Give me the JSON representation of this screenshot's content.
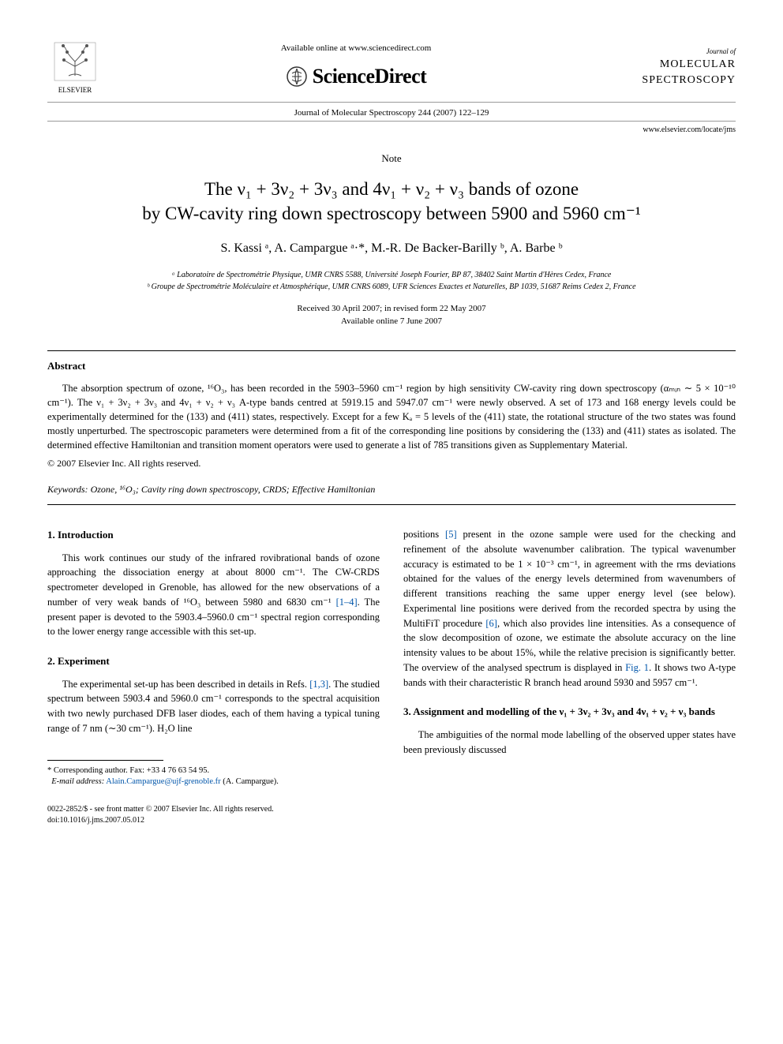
{
  "header": {
    "available_online": "Available online at www.sciencedirect.com",
    "sciencedirect": "ScienceDirect",
    "elsevier_label": "ELSEVIER",
    "journal_small": "Journal of",
    "journal_name_1": "MOLECULAR",
    "journal_name_2": "SPECTROSCOPY",
    "citation": "Journal of Molecular Spectroscopy 244 (2007) 122–129",
    "locate_url": "www.elsevier.com/locate/jms"
  },
  "note_label": "Note",
  "title_line1": "The ν₁ + 3ν₂ + 3ν₃ and 4ν₁ + ν₂ + ν₃ bands of ozone",
  "title_line2": "by CW-cavity ring down spectroscopy between 5900 and 5960 cm⁻¹",
  "authors_html": "S. Kassi ᵃ, A. Campargue ᵃ·*, M.-R. De Backer-Barilly ᵇ, A. Barbe ᵇ",
  "affiliations": {
    "a": "ᵃ Laboratoire de Spectrométrie Physique, UMR CNRS 5588, Université Joseph Fourier, BP 87, 38402 Saint Martin d'Hères Cedex, France",
    "b": "ᵇ Groupe de Spectrométrie Moléculaire et Atmosphérique, UMR CNRS 6089, UFR Sciences Exactes et Naturelles, BP 1039, 51687 Reims Cedex 2, France"
  },
  "dates": {
    "received": "Received 30 April 2007; in revised form 22 May 2007",
    "online": "Available online 7 June 2007"
  },
  "abstract": {
    "heading": "Abstract",
    "text": "The absorption spectrum of ozone, ¹⁶O₃, has been recorded in the 5903–5960 cm⁻¹ region by high sensitivity CW-cavity ring down spectroscopy (αₘᵢₙ ∼ 5 × 10⁻¹⁰ cm⁻¹). The ν₁ + 3ν₂ + 3ν₃ and 4ν₁ + ν₂ + ν₃ A-type bands centred at 5919.15 and 5947.07 cm⁻¹ were newly observed. A set of 173 and 168 energy levels could be experimentally determined for the (133) and (411) states, respectively. Except for a few Kₐ = 5 levels of the (411) state, the rotational structure of the two states was found mostly unperturbed. The spectroscopic parameters were determined from a fit of the corresponding line positions by considering the (133) and (411) states as isolated. The determined effective Hamiltonian and transition moment operators were used to generate a list of 785 transitions given as Supplementary Material.",
    "copyright": "© 2007 Elsevier Inc. All rights reserved."
  },
  "keywords": {
    "label": "Keywords:",
    "text": " Ozone, ¹⁶O₃; Cavity ring down spectroscopy, CRDS; Effective Hamiltonian"
  },
  "sections": {
    "intro_heading": "1. Introduction",
    "intro_text": "This work continues our study of the infrared rovibrational bands of ozone approaching the dissociation energy at about 8000 cm⁻¹. The CW-CRDS spectrometer developed in Grenoble, has allowed for the new observations of a number of very weak bands of ¹⁶O₃ between 5980 and 6830 cm⁻¹ [1–4]. The present paper is devoted to the 5903.4–5960.0 cm⁻¹ spectral region corresponding to the lower energy range accessible with this set-up.",
    "exp_heading": "2. Experiment",
    "exp_text": "The experimental set-up has been described in details in Refs. [1,3]. The studied spectrum between 5903.4 and 5960.0 cm⁻¹ corresponds to the spectral acquisition with two newly purchased DFB laser diodes, each of them having a typical tuning range of 7 nm (∼30 cm⁻¹). H₂O line",
    "col2_text1": "positions [5] present in the ozone sample were used for the checking and refinement of the absolute wavenumber calibration. The typical wavenumber accuracy is estimated to be 1 × 10⁻³ cm⁻¹, in agreement with the rms deviations obtained for the values of the energy levels determined from wavenumbers of different transitions reaching the same upper energy level (see below). Experimental line positions were derived from the recorded spectra by using the MultiFiT procedure [6], which also provides line intensities. As a consequence of the slow decomposition of ozone, we estimate the absolute accuracy on the line intensity values to be about 15%, while the relative precision is significantly better. The overview of the analysed spectrum is displayed in Fig. 1. It shows two A-type bands with their characteristic R branch head around 5930 and 5957 cm⁻¹.",
    "assign_heading": "3. Assignment and modelling of the ν₁ + 3ν₂ + 3ν₃ and 4ν₁ + ν₂ + ν₃ bands",
    "assign_text": "The ambiguities of the normal mode labelling of the observed upper states have been previously discussed"
  },
  "footnote": {
    "corresp": "* Corresponding author. Fax: +33 4 76 63 54 95.",
    "email_label": "E-mail address:",
    "email": "Alain.Campargue@ujf-grenoble.fr",
    "email_name": " (A. Campargue)."
  },
  "footer": {
    "line1": "0022-2852/$ - see front matter © 2007 Elsevier Inc. All rights reserved.",
    "line2": "doi:10.1016/j.jms.2007.05.012"
  },
  "colors": {
    "link": "#0055aa",
    "text": "#000000",
    "rule": "#999999"
  }
}
